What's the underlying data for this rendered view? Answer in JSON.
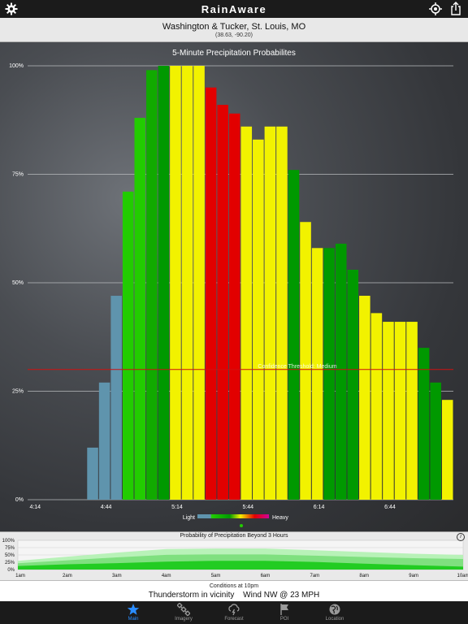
{
  "topbar": {
    "app_title": "RainAware",
    "settings_icon": "gear-icon",
    "locate_icon": "crosshair-icon",
    "share_icon": "share-icon"
  },
  "location": {
    "name": "Washington & Tucker, St. Louis, MO",
    "coords": "(38.63, -90.20)"
  },
  "chart_data": {
    "type": "bar",
    "title": "5-Minute Precipitation Probabilites",
    "yticks": [
      "100%",
      "75%",
      "50%",
      "25%",
      "0%"
    ],
    "ylim": [
      0,
      100
    ],
    "xticks": [
      "4:14",
      "4:44",
      "5:14",
      "5:44",
      "6:14",
      "6:44"
    ],
    "values": [
      0,
      0,
      0,
      0,
      0,
      12,
      27,
      47,
      71,
      88,
      99,
      100,
      100,
      100,
      100,
      95,
      91,
      89,
      86,
      83,
      86,
      86,
      76,
      64,
      58,
      58,
      59,
      53,
      47,
      43,
      41,
      41,
      41,
      35,
      27,
      23
    ],
    "colors": [
      "#000000",
      "#000000",
      "#000000",
      "#000000",
      "#000000",
      "#5f94ad",
      "#5f94ad",
      "#5f94ad",
      "#22cc00",
      "#22cc00",
      "#11aa00",
      "#009900",
      "#f2f200",
      "#f2f200",
      "#f2f200",
      "#e20000",
      "#e20000",
      "#e20000",
      "#f2f200",
      "#f2f200",
      "#f2f200",
      "#f2f200",
      "#009900",
      "#f2f200",
      "#f2f200",
      "#009900",
      "#009900",
      "#009900",
      "#f2f200",
      "#f2f200",
      "#f2f200",
      "#f2f200",
      "#f2f200",
      "#009900",
      "#009900",
      "#f2f200"
    ],
    "threshold": {
      "value": 30,
      "label": "Confidence Threshold: Medium",
      "color": "#d01010"
    },
    "legend": {
      "light": "Light",
      "heavy": "Heavy"
    },
    "grid": true
  },
  "beyond": {
    "title": "Probability of Precipitation Beyond 3 Hours",
    "info_icon": "info-icon",
    "yticks": [
      "100%",
      "75%",
      "50%",
      "25%",
      "0%"
    ],
    "xticks": [
      "1am",
      "2am",
      "3am",
      "4am",
      "5am",
      "6am",
      "7am",
      "8am",
      "9am",
      "10am"
    ],
    "light_band": [
      30,
      44,
      58,
      70,
      72,
      72,
      66,
      60,
      54,
      50
    ],
    "dark_band": [
      12,
      18,
      22,
      27,
      30,
      30,
      26,
      20,
      15,
      10
    ]
  },
  "conditions": {
    "title": "Conditions at 10pm",
    "weather": "Thunderstorm in vicinity",
    "wind": "Wind NW @ 23 MPH"
  },
  "tabs": [
    {
      "label": "Main",
      "icon": "star-icon",
      "active": true
    },
    {
      "label": "Imagery",
      "icon": "satellite-icon",
      "active": false
    },
    {
      "label": "Forecast",
      "icon": "cloud-lightning-icon",
      "active": false
    },
    {
      "label": "POI",
      "icon": "flag-icon",
      "active": false
    },
    {
      "label": "Location",
      "icon": "globe-icon",
      "active": false
    }
  ]
}
